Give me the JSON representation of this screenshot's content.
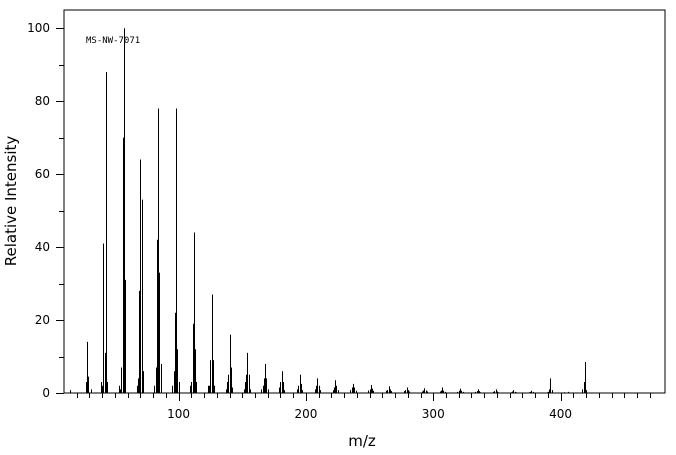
{
  "chart_data": {
    "type": "bar",
    "title": "",
    "annotation": "MS-NW-7071",
    "xlabel": "m/z",
    "ylabel": "Relative Intensity",
    "xlim": [
      10,
      482
    ],
    "ylim": [
      0,
      105
    ],
    "x_ticks": [
      100,
      200,
      300,
      400
    ],
    "y_ticks": [
      0,
      20,
      40,
      60,
      80,
      100
    ],
    "x": [
      15,
      27,
      28,
      29,
      31,
      39,
      40,
      41,
      42,
      43,
      44,
      53,
      54,
      55,
      56,
      57,
      58,
      67,
      68,
      69,
      70,
      71,
      72,
      81,
      82,
      83,
      84,
      85,
      86,
      95,
      96,
      97,
      98,
      99,
      100,
      109,
      110,
      111,
      112,
      113,
      114,
      123,
      124,
      125,
      126,
      127,
      128,
      137,
      138,
      139,
      140,
      141,
      142,
      151,
      152,
      153,
      154,
      155,
      156,
      165,
      166,
      167,
      168,
      169,
      170,
      179,
      180,
      181,
      182,
      183,
      193,
      194,
      195,
      196,
      197,
      207,
      208,
      209,
      210,
      211,
      221,
      222,
      223,
      224,
      225,
      235,
      236,
      237,
      238,
      239,
      249,
      250,
      251,
      252,
      253,
      263,
      264,
      265,
      266,
      267,
      277,
      278,
      279,
      280,
      281,
      291,
      292,
      293,
      294,
      295,
      305,
      306,
      307,
      308,
      309,
      319,
      320,
      321,
      322,
      323,
      333,
      334,
      335,
      336,
      337,
      347,
      348,
      349,
      350,
      351,
      361,
      362,
      363,
      364,
      365,
      375,
      376,
      377,
      378,
      379,
      389,
      390,
      391,
      392,
      393,
      403,
      404,
      405,
      406,
      407,
      416,
      417,
      418,
      419,
      420
    ],
    "values": [
      0.8,
      3,
      14,
      4.5,
      1,
      3,
      2,
      41,
      11,
      88,
      3,
      2,
      1,
      7,
      70,
      100,
      31,
      2,
      4,
      28,
      64,
      53,
      6,
      2,
      7,
      42,
      78,
      33,
      8,
      2,
      6,
      22,
      78,
      12,
      3,
      2,
      3,
      19,
      44,
      12,
      3,
      2,
      2,
      9,
      27,
      9,
      2,
      1,
      3,
      5,
      16,
      7,
      1.5,
      1,
      3,
      5,
      11,
      5,
      1,
      1,
      2,
      4,
      8,
      4,
      1,
      1.5,
      3,
      6,
      3,
      0.8,
      1,
      2,
      5,
      2.5,
      0.8,
      1,
      2,
      4,
      2,
      0.8,
      0.8,
      1.5,
      3.5,
      2,
      0.8,
      0.8,
      1.5,
      2.5,
      1.5,
      0.6,
      0.7,
      1,
      2.2,
      1.2,
      0.6,
      0.6,
      0.8,
      1.8,
      1,
      0.5,
      0.5,
      0.8,
      1.5,
      0.8,
      0.4,
      0.4,
      0.7,
      1.3,
      0.7,
      0.4,
      0.4,
      0.7,
      1.5,
      0.6,
      0.3,
      0.3,
      0.6,
      1.2,
      0.6,
      0.3,
      0.3,
      0.5,
      1,
      0.5,
      0.2,
      0.3,
      0.5,
      1,
      0.4,
      0.2,
      0.2,
      0.4,
      0.8,
      0.3,
      0.2,
      0.2,
      0.3,
      0.6,
      0.3,
      0.1,
      0.2,
      0.3,
      1,
      4,
      0.8,
      0.2,
      0.1,
      0.1,
      0.3,
      0.1,
      0.1,
      1,
      3,
      8.5,
      0.8
    ],
    "grid": false,
    "legend": "none"
  }
}
